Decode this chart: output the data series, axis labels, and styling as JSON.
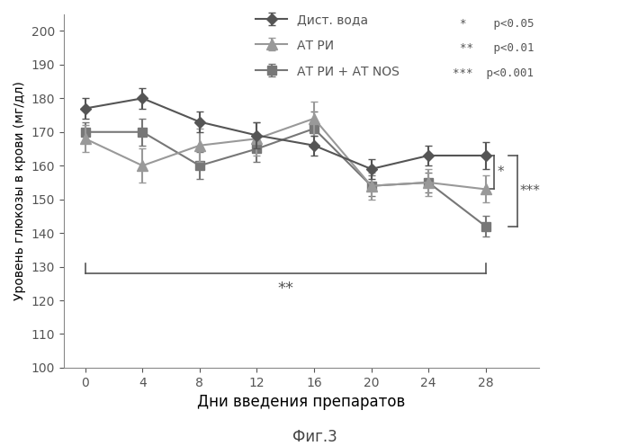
{
  "x": [
    0,
    4,
    8,
    12,
    16,
    20,
    24,
    28
  ],
  "series1_y": [
    177,
    180,
    173,
    169,
    166,
    159,
    163,
    163
  ],
  "series1_yerr": [
    3,
    3,
    3,
    4,
    3,
    3,
    3,
    4
  ],
  "series1_label": "Дист. вода",
  "series1_color": "#555555",
  "series1_marker": "D",
  "series2_y": [
    168,
    160,
    166,
    168,
    174,
    154,
    155,
    153
  ],
  "series2_yerr": [
    4,
    5,
    5,
    5,
    5,
    4,
    4,
    4
  ],
  "series2_label": "АТ РИ",
  "series2_color": "#999999",
  "series2_marker": "^",
  "series3_y": [
    170,
    170,
    160,
    165,
    171,
    154,
    155,
    142
  ],
  "series3_yerr": [
    3,
    4,
    4,
    4,
    5,
    3,
    3,
    3
  ],
  "series3_label": "АТ РИ + АТ NOS",
  "series3_color": "#777777",
  "series3_marker": "s",
  "xlabel": "Дни введения препаратов",
  "ylabel": "Уровень глюкозы в крови (мг/дл)",
  "ylim": [
    100,
    205
  ],
  "yticks": [
    100,
    110,
    120,
    130,
    140,
    150,
    160,
    170,
    180,
    190,
    200
  ],
  "xticks": [
    0,
    4,
    8,
    12,
    16,
    20,
    24,
    28
  ],
  "title_fig": "Фиг.3",
  "stat_lines": [
    "*    p<0.05",
    "**   p<0.01",
    "***  p<0.001"
  ],
  "background_color": "#ffffff"
}
